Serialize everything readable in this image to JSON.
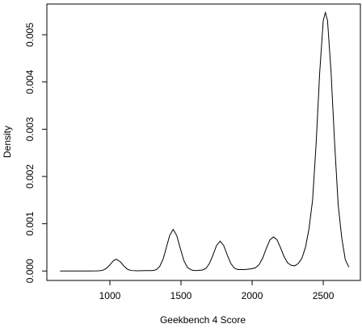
{
  "chart_data": {
    "type": "line",
    "x_label": "Geekbench 4 Score",
    "y_label": "Density",
    "x": [
      650,
      700,
      750,
      800,
      850,
      900,
      925,
      950,
      975,
      1000,
      1025,
      1045,
      1075,
      1100,
      1125,
      1150,
      1200,
      1250,
      1300,
      1325,
      1350,
      1375,
      1400,
      1420,
      1445,
      1470,
      1495,
      1520,
      1545,
      1575,
      1600,
      1650,
      1675,
      1700,
      1725,
      1750,
      1775,
      1800,
      1825,
      1850,
      1875,
      1900,
      1950,
      2000,
      2025,
      2050,
      2075,
      2100,
      2125,
      2150,
      2175,
      2200,
      2225,
      2250,
      2275,
      2300,
      2325,
      2350,
      2375,
      2400,
      2425,
      2450,
      2475,
      2500,
      2515,
      2530,
      2555,
      2580,
      2605,
      2630,
      2655,
      2680
    ],
    "series": [
      {
        "color": "#000000",
        "values": [
          0,
          0,
          0,
          0,
          0,
          2e-06,
          5e-06,
          1.4e-05,
          5.4e-05,
          0.00013,
          0.00022,
          0.00025,
          0.00019,
          0.0001,
          3.4e-05,
          1e-05,
          5e-06,
          1e-05,
          1e-05,
          2.6e-05,
          9.5e-05,
          0.00026,
          0.00053,
          0.00075,
          0.00088,
          0.00075,
          0.00048,
          0.00022,
          7.5e-05,
          2e-05,
          8e-06,
          2e-05,
          5.4e-05,
          0.00016,
          0.00034,
          0.00054,
          0.00063,
          0.00054,
          0.00034,
          0.00016,
          6e-05,
          3e-05,
          3e-05,
          5e-05,
          7e-05,
          0.00014,
          0.00028,
          0.00048,
          0.00066,
          0.00072,
          0.00066,
          0.00049,
          0.0003,
          0.00017,
          0.00012,
          0.00011,
          0.00016,
          0.00027,
          0.0005,
          0.0009,
          0.0015,
          0.0027,
          0.0042,
          0.0053,
          0.00547,
          0.0053,
          0.0042,
          0.0027,
          0.0014,
          0.0007,
          0.00024,
          8e-05
        ]
      }
    ],
    "xlim": [
      557,
      2761
    ],
    "ylim": [
      -0.0002,
      0.00565
    ],
    "xticks": [
      1000,
      1500,
      2000,
      2500
    ],
    "yticks": [
      {
        "value": 0,
        "label": "0.000"
      },
      {
        "value": 0.001,
        "label": "0.001"
      },
      {
        "value": 0.002,
        "label": "0.002"
      },
      {
        "value": 0.003,
        "label": "0.003"
      },
      {
        "value": 0.004,
        "label": "0.004"
      },
      {
        "value": 0.005,
        "label": "0.005"
      }
    ]
  }
}
